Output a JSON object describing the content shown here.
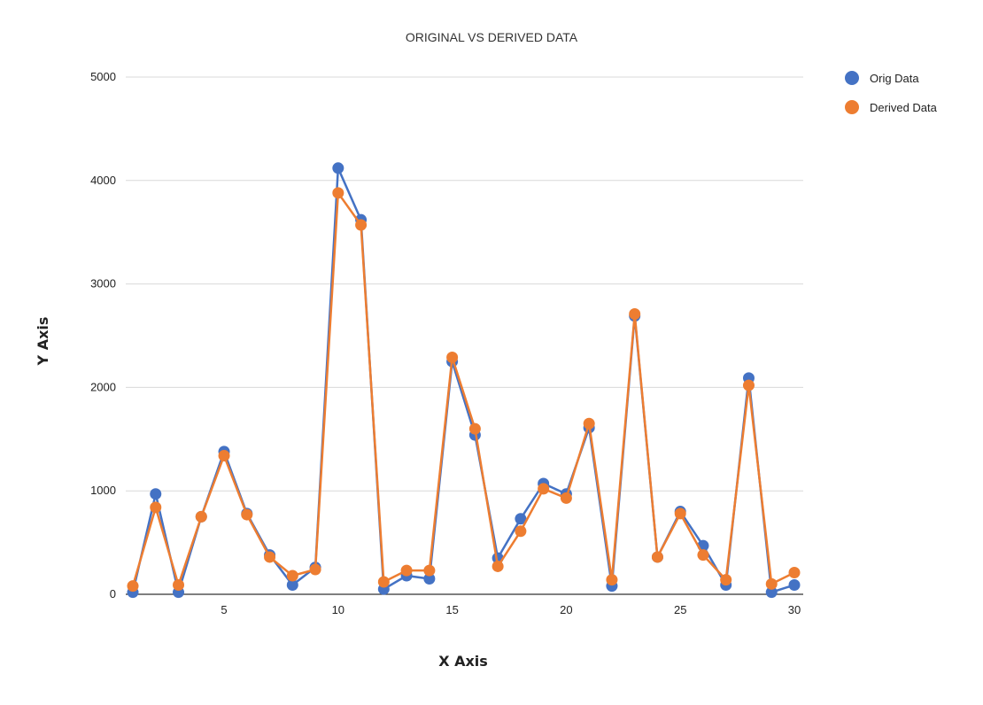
{
  "chart_data": {
    "type": "line",
    "title": "ORIGINAL VS DERIVED DATA",
    "xlabel": "X Axis",
    "ylabel": "Y Axis",
    "xlim": [
      1,
      30
    ],
    "ylim": [
      0,
      5000
    ],
    "xticks": [
      5,
      10,
      15,
      20,
      25,
      30
    ],
    "yticks": [
      0,
      1000,
      2000,
      3000,
      4000,
      5000
    ],
    "grid": true,
    "legend_position": "top-right",
    "x": [
      1,
      2,
      3,
      4,
      5,
      6,
      7,
      8,
      9,
      10,
      11,
      12,
      13,
      14,
      15,
      16,
      17,
      18,
      19,
      20,
      21,
      22,
      23,
      24,
      25,
      26,
      27,
      28,
      29,
      30
    ],
    "series": [
      {
        "name": "Orig Data",
        "color": "#4472c4",
        "values": [
          20,
          970,
          20,
          750,
          1380,
          780,
          380,
          90,
          260,
          4120,
          3620,
          50,
          180,
          150,
          2250,
          1540,
          350,
          730,
          1070,
          970,
          1610,
          80,
          2690,
          360,
          800,
          470,
          90,
          2090,
          20,
          90
        ]
      },
      {
        "name": "Derived Data",
        "color": "#ed7d31",
        "values": [
          80,
          840,
          90,
          750,
          1340,
          770,
          360,
          180,
          240,
          3880,
          3570,
          120,
          230,
          230,
          2290,
          1600,
          270,
          610,
          1020,
          930,
          1650,
          140,
          2710,
          360,
          780,
          380,
          140,
          2020,
          100,
          210
        ]
      }
    ]
  }
}
